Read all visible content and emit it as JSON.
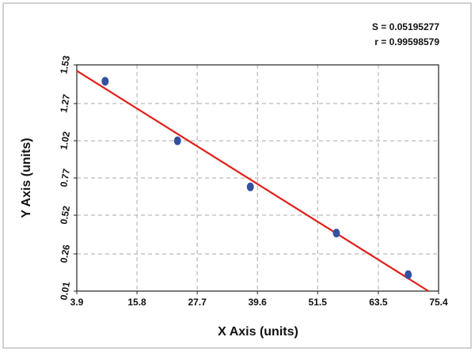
{
  "chart_data": {
    "type": "scatter",
    "annotations": [
      "S = 0.05195277",
      "r = 0.99598579"
    ],
    "x_label": "X Axis (units)",
    "y_label": "Y Axis (units)",
    "x": [
      9.5,
      23.8,
      38.2,
      55.2,
      69.4
    ],
    "y": [
      1.42,
      1.02,
      0.71,
      0.4,
      0.12
    ],
    "color": "#3550a0",
    "fit": {
      "x": [
        3.9,
        73.4
      ],
      "y": [
        1.49,
        0.01
      ],
      "color": "#e0201a"
    },
    "xlim": [
      3.9,
      75.4
    ],
    "xticks": [
      3.9,
      15.8,
      27.7,
      39.6,
      51.5,
      63.5,
      75.4
    ],
    "ylim": [
      0.01,
      1.53
    ],
    "yticks": [
      0.01,
      0.26,
      0.52,
      0.77,
      1.02,
      1.27,
      1.53
    ],
    "grid": true
  }
}
